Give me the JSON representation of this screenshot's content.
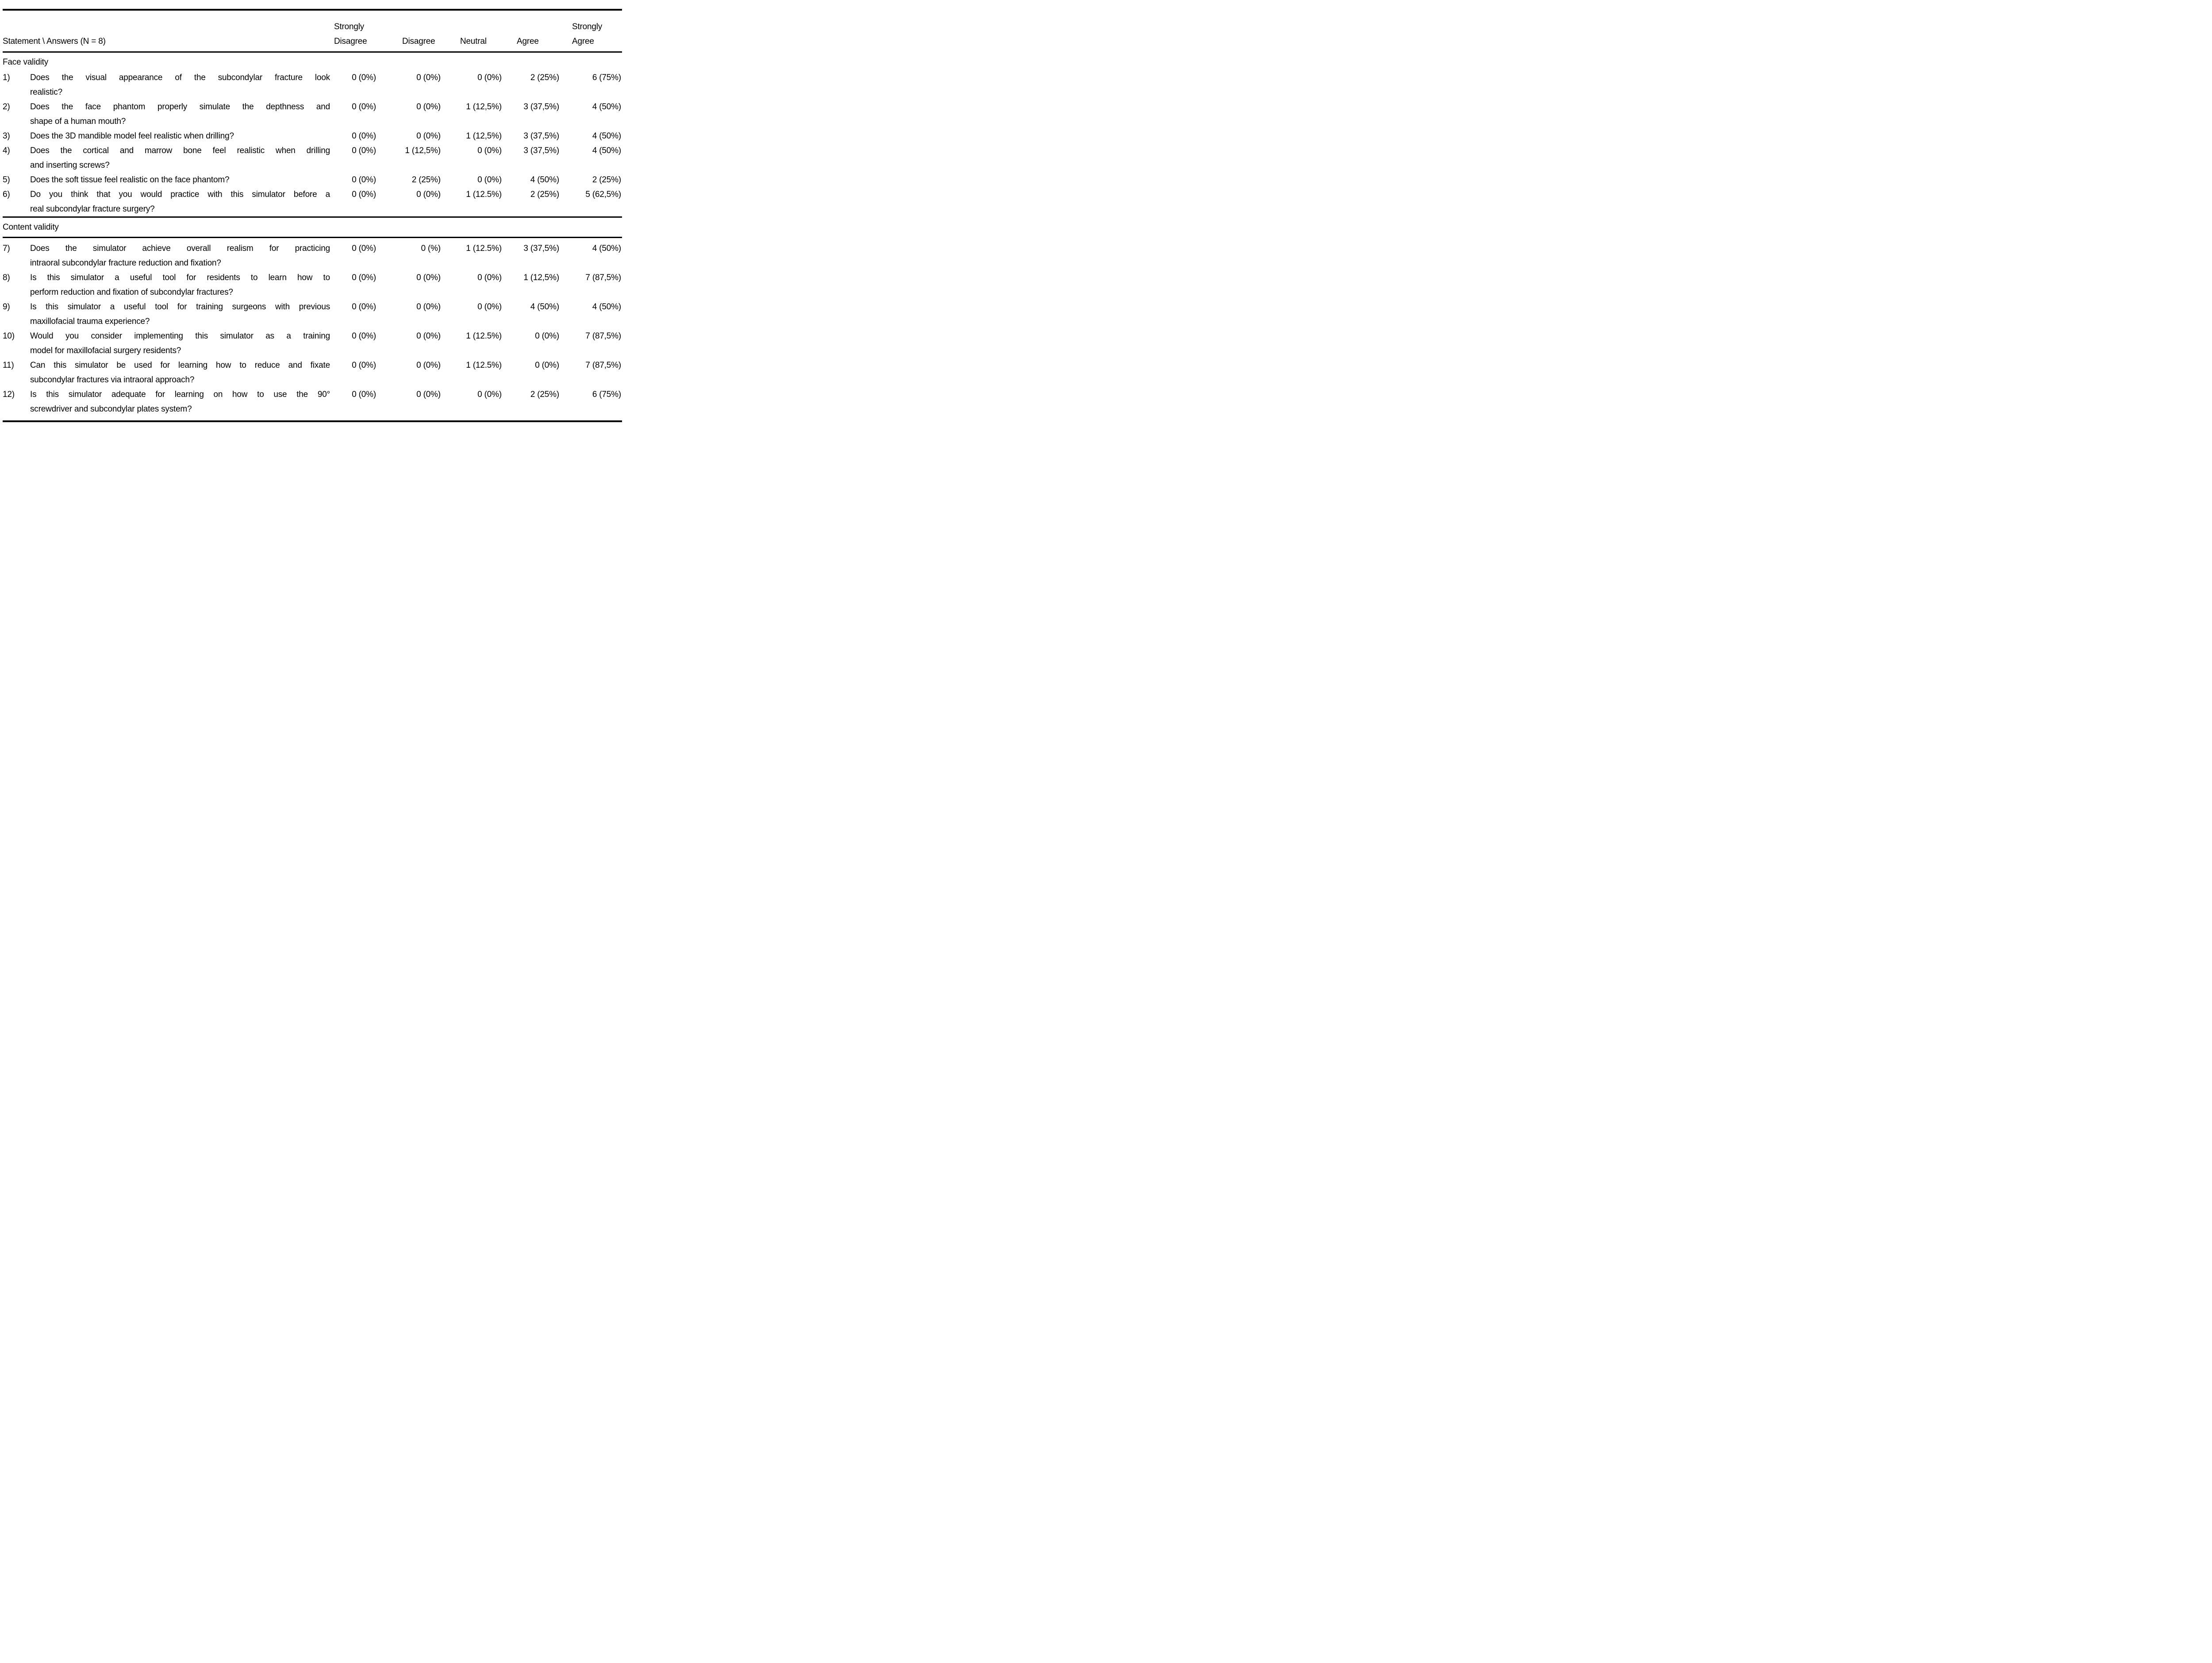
{
  "table": {
    "header": {
      "statement_label": "Statement \\ Answers (N = 8)",
      "answer_columns": [
        {
          "key": "strongly-disagree",
          "lines": [
            "Strongly",
            "Disagree"
          ]
        },
        {
          "key": "disagree",
          "lines": [
            "Disagree"
          ]
        },
        {
          "key": "neutral",
          "lines": [
            "Neutral"
          ]
        },
        {
          "key": "agree",
          "lines": [
            "Agree"
          ]
        },
        {
          "key": "strongly-agree",
          "lines": [
            "Strongly",
            "Agree"
          ]
        }
      ]
    },
    "sections": [
      {
        "title": "Face validity",
        "rows": [
          {
            "num": "1)",
            "lines": [
              "Does the visual appearance of the subcondylar fracture look",
              "realistic?"
            ],
            "values": [
              "0 (0%)",
              "0 (0%)",
              "0 (0%)",
              "2 (25%)",
              "6 (75%)"
            ]
          },
          {
            "num": "2)",
            "lines": [
              "Does the face phantom properly simulate the depthness and",
              "shape of a human mouth?"
            ],
            "values": [
              "0 (0%)",
              "0 (0%)",
              "1 (12,5%)",
              "3 (37,5%)",
              "4 (50%)"
            ]
          },
          {
            "num": "3)",
            "lines": [
              "Does the 3D mandible model feel realistic when drilling?"
            ],
            "values": [
              "0 (0%)",
              "0 (0%)",
              "1 (12,5%)",
              "3 (37,5%)",
              "4 (50%)"
            ]
          },
          {
            "num": "4)",
            "lines": [
              "Does the cortical and marrow bone feel realistic when drilling",
              "and inserting screws?"
            ],
            "values": [
              "0 (0%)",
              "1 (12,5%)",
              "0 (0%)",
              "3 (37,5%)",
              "4 (50%)"
            ]
          },
          {
            "num": "5)",
            "lines": [
              "Does the soft tissue feel realistic on the face phantom?"
            ],
            "values": [
              "0 (0%)",
              "2 (25%)",
              "0 (0%)",
              "4 (50%)",
              "2 (25%)"
            ]
          },
          {
            "num": "6)",
            "lines": [
              "Do you think that you would practice with this simulator before a",
              "real subcondylar fracture surgery?"
            ],
            "values": [
              "0 (0%)",
              "0 (0%)",
              "1 (12.5%)",
              "2 (25%)",
              "5 (62,5%)"
            ]
          }
        ]
      },
      {
        "title": "Content validity",
        "rows": [
          {
            "num": "7)",
            "lines": [
              "Does the simulator achieve overall realism for practicing",
              "intraoral subcondylar fracture reduction and fixation?"
            ],
            "values": [
              "0 (0%)",
              "0 (%)",
              "1 (12.5%)",
              "3 (37,5%)",
              "4 (50%)"
            ]
          },
          {
            "num": "8)",
            "lines": [
              "Is this simulator a useful tool for residents to learn how to",
              "perform reduction and fixation of subcondylar fractures?"
            ],
            "values": [
              "0 (0%)",
              "0 (0%)",
              "0 (0%)",
              "1 (12,5%)",
              "7 (87,5%)"
            ]
          },
          {
            "num": "9)",
            "lines": [
              "Is this simulator a useful tool for training surgeons with previous",
              "maxillofacial trauma experience?"
            ],
            "values": [
              "0 (0%)",
              "0 (0%)",
              "0 (0%)",
              "4 (50%)",
              "4 (50%)"
            ]
          },
          {
            "num": "10)",
            "lines": [
              "Would you consider implementing this simulator as a training",
              "model for maxillofacial surgery residents?"
            ],
            "values": [
              "0 (0%)",
              "0 (0%)",
              "1 (12.5%)",
              "0 (0%)",
              "7 (87,5%)"
            ]
          },
          {
            "num": "11)",
            "lines": [
              "Can this simulator be used for learning how to reduce and fixate",
              "subcondylar fractures via intraoral approach?"
            ],
            "values": [
              "0 (0%)",
              "0 (0%)",
              "1 (12.5%)",
              "0 (0%)",
              "7 (87,5%)"
            ]
          },
          {
            "num": "12)",
            "lines": [
              "Is this simulator adequate for learning on how to use the 90°",
              "screwdriver and subcondylar plates system?"
            ],
            "values": [
              "0 (0%)",
              "0 (0%)",
              "0 (0%)",
              "2 (25%)",
              "6 (75%)"
            ]
          }
        ]
      }
    ]
  }
}
